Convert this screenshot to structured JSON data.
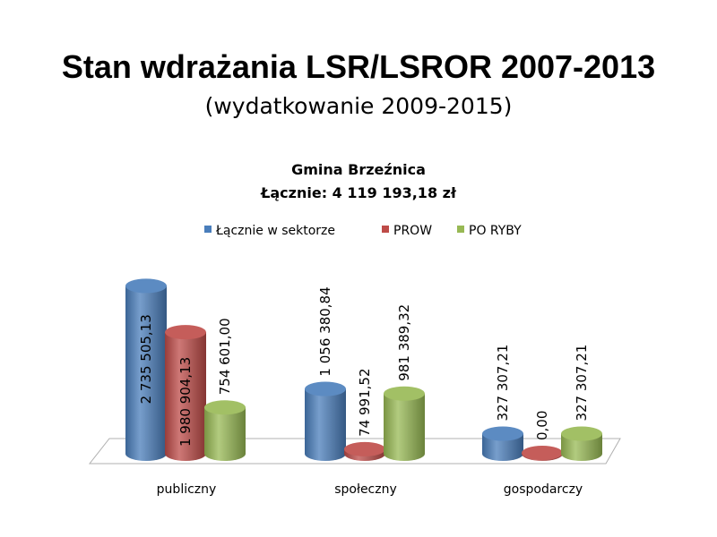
{
  "slide": {
    "title": "Stan wdrażania LSR/LSROR 2007-2013",
    "subtitle": "(wydatkowanie 2009-2015)"
  },
  "chart_data": {
    "type": "bar",
    "title": "Gmina Brzeźnica",
    "subtitle": "Łącznie: 4 119 193,18 zł",
    "style": "3d-cylinder",
    "legend_position": "top",
    "categories": [
      "publiczny",
      "społeczny",
      "gospodarczy"
    ],
    "series": [
      {
        "name": "Łącznie w sektorze",
        "color": "#4a7ebb",
        "values": [
          2735505.13,
          1056380.84,
          327307.21
        ],
        "labels": [
          "2 735 505,13",
          "1 056 380,84",
          "327 307,21"
        ]
      },
      {
        "name": "PROW",
        "color": "#be4b48",
        "values": [
          1980904.13,
          74991.52,
          0.0
        ],
        "labels": [
          "1 980 904,13",
          "74 991,52",
          "0,00"
        ]
      },
      {
        "name": "PO RYBY",
        "color": "#98b954",
        "values": [
          754601.0,
          981389.32,
          327307.21
        ],
        "labels": [
          "754 601,00",
          "981 389,32",
          "327 307,21"
        ]
      }
    ],
    "grid": false
  }
}
